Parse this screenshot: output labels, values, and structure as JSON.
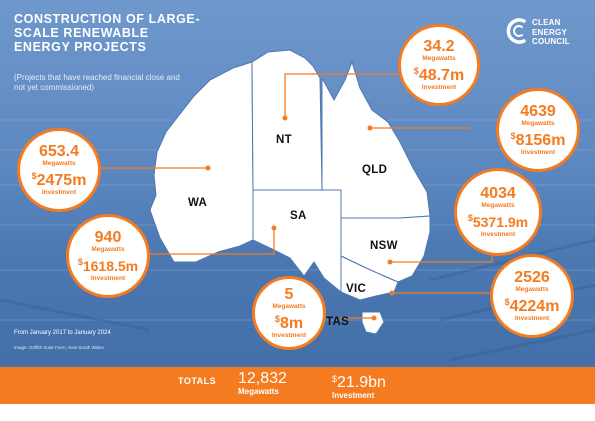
{
  "header": {
    "title": "CONSTRUCTION OF LARGE-SCALE RENEWABLE ENERGY PROJECTS",
    "subtitle": "(Projects that have reached financial close and not yet commissioned)"
  },
  "logo": {
    "line1": "CLEAN",
    "line2": "ENERGY",
    "line3": "COUNCIL",
    "icon": "cec-c-logo-icon"
  },
  "colors": {
    "accent": "#f47b20",
    "map": "#ffffff",
    "background": "#5d88c0"
  },
  "states": {
    "wa": "WA",
    "nt": "NT",
    "sa": "SA",
    "qld": "QLD",
    "nsw": "NSW",
    "vic": "VIC",
    "tas": "TAS"
  },
  "bubbles": {
    "nt": {
      "mw": "34.2",
      "unit": "Megawatts",
      "currency": "$",
      "inv": "48.7m",
      "inv_label": "Investment"
    },
    "qld": {
      "mw": "4639",
      "unit": "Megawatts",
      "currency": "$",
      "inv": "8156m",
      "inv_label": "Investment"
    },
    "wa": {
      "mw": "653.4",
      "unit": "Megawatts",
      "currency": "$",
      "inv": "2475m",
      "inv_label": "Investment"
    },
    "nsw": {
      "mw": "4034",
      "unit": "Megawatts",
      "currency": "$",
      "inv": "5371.9m",
      "inv_label": "Investment"
    },
    "sa": {
      "mw": "940",
      "unit": "Megawatts",
      "currency": "$",
      "inv": "1618.5m",
      "inv_label": "Investment"
    },
    "vic": {
      "mw": "2526",
      "unit": "Megawatts",
      "currency": "$",
      "inv": "4224m",
      "inv_label": "Investment"
    },
    "tas": {
      "mw": "5",
      "unit": "Megawatts",
      "currency": "$",
      "inv": "8m",
      "inv_label": "Investment"
    }
  },
  "footer": {
    "date_range": "From January 2017 to January 2024",
    "image_credit": "Image: Griffith Solar Farm, New South Wales"
  },
  "totals": {
    "label": "TOTALS",
    "mw": "12,832",
    "mw_label": "Megawatts",
    "currency": "$",
    "inv": "21.9bn",
    "inv_label": "Investment"
  }
}
